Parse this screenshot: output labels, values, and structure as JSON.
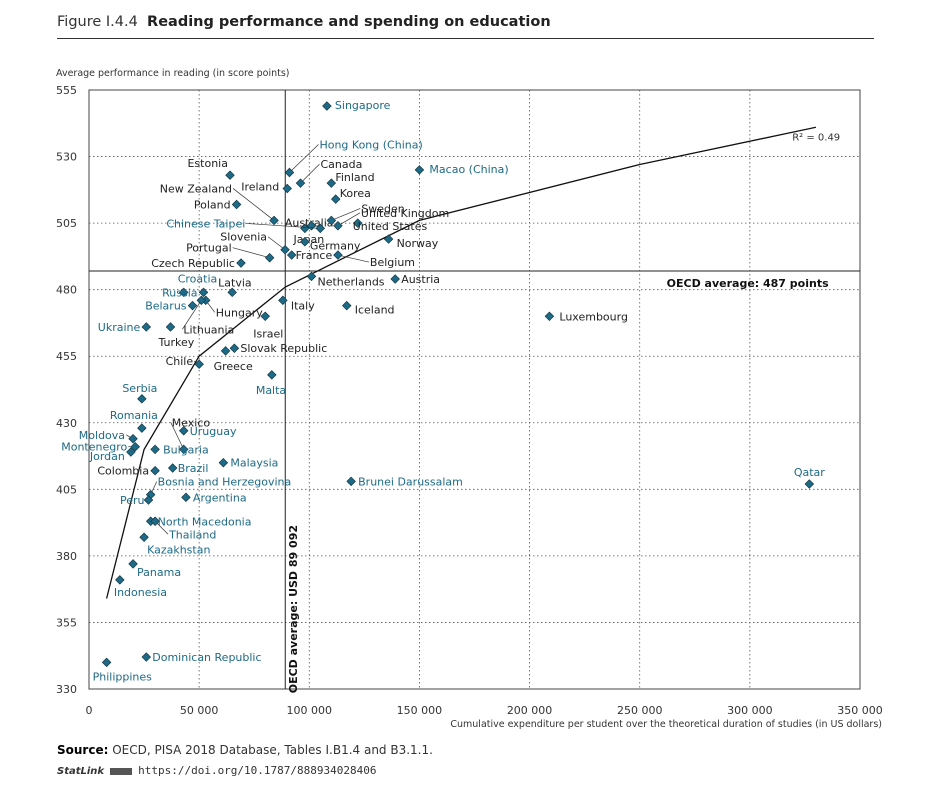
{
  "figure": {
    "number": "Figure I.4.4",
    "title": "Reading performance and spending on education",
    "source_label": "Source:",
    "source_text": "OECD, PISA 2018 Database, Tables I.B1.4 and B3.1.1.",
    "statlink_label": "StatLink",
    "statlink_url": "https://doi.org/10.1787/888934028406"
  },
  "colors": {
    "oecd_marker": "#1e6a86",
    "partner_label": "#1e6a86",
    "oecd_label": "#222222"
  },
  "chart_data": {
    "type": "scatter",
    "ylabel": "Average performance in reading (in score points)",
    "xlabel": "Cumulative expenditure per student over the theoretical duration of studies (in US dollars)",
    "xlim": [
      0,
      350000
    ],
    "ylim": [
      330,
      555
    ],
    "xticks": [
      0,
      50000,
      100000,
      150000,
      200000,
      250000,
      300000,
      350000
    ],
    "xtick_labels": [
      "0",
      "50 000",
      "100 000",
      "150 000",
      "200 000",
      "250 000",
      "300 000",
      "350 000"
    ],
    "yticks": [
      330,
      355,
      380,
      405,
      430,
      455,
      480,
      505,
      530,
      555
    ],
    "grid": "dotted",
    "r2_label": "R² = 0.49",
    "reference_lines": {
      "y_value": 487,
      "y_label": "OECD average: 487 points",
      "x_value": 89092,
      "x_label": "OECD average: USD 89 092"
    },
    "trend": {
      "type": "logarithmic",
      "points": [
        [
          8000,
          364
        ],
        [
          25000,
          420
        ],
        [
          50000,
          455
        ],
        [
          89092,
          481
        ],
        [
          150000,
          506
        ],
        [
          250000,
          527
        ],
        [
          330000,
          541
        ]
      ]
    },
    "points": [
      {
        "name": "Singapore",
        "x": 108000,
        "y": 549,
        "partner": true
      },
      {
        "name": "Hong Kong (China)",
        "x": 91000,
        "y": 524,
        "partner": true
      },
      {
        "name": "Macao (China)",
        "x": 150000,
        "y": 525,
        "partner": true
      },
      {
        "name": "Estonia",
        "x": 64000,
        "y": 523,
        "partner": false
      },
      {
        "name": "Canada",
        "x": 96000,
        "y": 520,
        "partner": false
      },
      {
        "name": "Ireland",
        "x": 90000,
        "y": 518,
        "partner": false
      },
      {
        "name": "Finland",
        "x": 110000,
        "y": 520,
        "partner": false
      },
      {
        "name": "Korea",
        "x": 112000,
        "y": 514,
        "partner": false
      },
      {
        "name": "New Zealand",
        "x": 84000,
        "y": 506,
        "partner": false
      },
      {
        "name": "Poland",
        "x": 67000,
        "y": 512,
        "partner": false
      },
      {
        "name": "United Kingdom",
        "x": 113000,
        "y": 504,
        "partner": false
      },
      {
        "name": "Australia",
        "x": 98000,
        "y": 503,
        "partner": false
      },
      {
        "name": "Japan",
        "x": 101000,
        "y": 504,
        "partner": false
      },
      {
        "name": "Sweden",
        "x": 110000,
        "y": 506,
        "partner": false
      },
      {
        "name": "United States",
        "x": 122000,
        "y": 505,
        "partner": false
      },
      {
        "name": "Chinese Taipei",
        "x": 105000,
        "y": 503,
        "partner": true
      },
      {
        "name": "Slovenia",
        "x": 89000,
        "y": 495,
        "partner": false
      },
      {
        "name": "Germany",
        "x": 98000,
        "y": 498,
        "partner": false
      },
      {
        "name": "Norway",
        "x": 136000,
        "y": 499,
        "partner": false
      },
      {
        "name": "Portugal",
        "x": 82000,
        "y": 492,
        "partner": false
      },
      {
        "name": "France",
        "x": 92000,
        "y": 493,
        "partner": false
      },
      {
        "name": "Belgium",
        "x": 113000,
        "y": 493,
        "partner": false
      },
      {
        "name": "Czech Republic",
        "x": 69000,
        "y": 490,
        "partner": false
      },
      {
        "name": "Netherlands",
        "x": 101000,
        "y": 485,
        "partner": false
      },
      {
        "name": "Austria",
        "x": 139000,
        "y": 484,
        "partner": false
      },
      {
        "name": "Croatia",
        "x": 43000,
        "y": 479,
        "partner": true
      },
      {
        "name": "Latvia",
        "x": 65000,
        "y": 479,
        "partner": false
      },
      {
        "name": "Russia",
        "x": 52000,
        "y": 479,
        "partner": true
      },
      {
        "name": "Hungary",
        "x": 53000,
        "y": 476,
        "partner": false
      },
      {
        "name": "Belarus",
        "x": 47000,
        "y": 474,
        "partner": true
      },
      {
        "name": "Lithuania",
        "x": 51000,
        "y": 476,
        "partner": false
      },
      {
        "name": "Italy",
        "x": 88000,
        "y": 476,
        "partner": false
      },
      {
        "name": "Iceland",
        "x": 117000,
        "y": 474,
        "partner": false
      },
      {
        "name": "Israel",
        "x": 80000,
        "y": 470,
        "partner": false
      },
      {
        "name": "Luxembourg",
        "x": 209000,
        "y": 470,
        "partner": false
      },
      {
        "name": "Ukraine",
        "x": 26000,
        "y": 466,
        "partner": true
      },
      {
        "name": "Turkey",
        "x": 37000,
        "y": 466,
        "partner": false
      },
      {
        "name": "Slovak Republic",
        "x": 66000,
        "y": 458,
        "partner": false
      },
      {
        "name": "Chile",
        "x": 50000,
        "y": 452,
        "partner": false
      },
      {
        "name": "Greece",
        "x": 62000,
        "y": 457,
        "partner": false
      },
      {
        "name": "Malta",
        "x": 83000,
        "y": 448,
        "partner": true
      },
      {
        "name": "Serbia",
        "x": 24000,
        "y": 439,
        "partner": true
      },
      {
        "name": "Mexico",
        "x": 43000,
        "y": 420,
        "partner": false
      },
      {
        "name": "Uruguay",
        "x": 43000,
        "y": 427,
        "partner": true
      },
      {
        "name": "Romania",
        "x": 24000,
        "y": 428,
        "partner": true
      },
      {
        "name": "Moldova",
        "x": 20000,
        "y": 424,
        "partner": true
      },
      {
        "name": "Montenegro",
        "x": 21000,
        "y": 421,
        "partner": true
      },
      {
        "name": "Jordan",
        "x": 19000,
        "y": 419,
        "partner": true
      },
      {
        "name": "Bulgaria",
        "x": 30000,
        "y": 420,
        "partner": true
      },
      {
        "name": "Malaysia",
        "x": 61000,
        "y": 415,
        "partner": true
      },
      {
        "name": "Colombia",
        "x": 30000,
        "y": 412,
        "partner": false
      },
      {
        "name": "Brazil",
        "x": 38000,
        "y": 413,
        "partner": true
      },
      {
        "name": "Brunei Darussalam",
        "x": 119000,
        "y": 408,
        "partner": true
      },
      {
        "name": "Qatar",
        "x": 327000,
        "y": 407,
        "partner": true
      },
      {
        "name": "Bosnia and Herzegovina",
        "x": 28000,
        "y": 403,
        "partner": true
      },
      {
        "name": "Peru",
        "x": 27000,
        "y": 401,
        "partner": true
      },
      {
        "name": "Argentina",
        "x": 44000,
        "y": 402,
        "partner": true
      },
      {
        "name": "North Macedonia",
        "x": 28000,
        "y": 393,
        "partner": true
      },
      {
        "name": "Thailand",
        "x": 30000,
        "y": 393,
        "partner": true
      },
      {
        "name": "Kazakhstan",
        "x": 25000,
        "y": 387,
        "partner": true
      },
      {
        "name": "Panama",
        "x": 20000,
        "y": 377,
        "partner": true
      },
      {
        "name": "Indonesia",
        "x": 14000,
        "y": 371,
        "partner": true
      },
      {
        "name": "Dominican Republic",
        "x": 26000,
        "y": 342,
        "partner": true
      },
      {
        "name": "Philippines",
        "x": 8000,
        "y": 340,
        "partner": true
      }
    ]
  }
}
